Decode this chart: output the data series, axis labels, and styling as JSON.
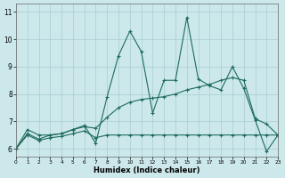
{
  "xlabel": "Humidex (Indice chaleur)",
  "bg_color": "#cce8ea",
  "grid_color": "#a8ced2",
  "line_color": "#1e6b5e",
  "xlim": [
    0,
    23
  ],
  "ylim": [
    5.7,
    11.3
  ],
  "xtick_vals": [
    0,
    1,
    2,
    3,
    4,
    5,
    6,
    7,
    8,
    9,
    10,
    11,
    12,
    13,
    14,
    15,
    16,
    17,
    18,
    19,
    20,
    21,
    22,
    23
  ],
  "ytick_vals": [
    6,
    7,
    8,
    9,
    10,
    11
  ],
  "line1_x": [
    0,
    1,
    2,
    3,
    4,
    5,
    6,
    7,
    8,
    9,
    10,
    11,
    12,
    13,
    14,
    15,
    16,
    17,
    18,
    19,
    20,
    21,
    22,
    23
  ],
  "line1_y": [
    6.0,
    6.7,
    6.5,
    6.5,
    6.55,
    6.7,
    6.85,
    6.2,
    7.9,
    9.4,
    10.3,
    9.55,
    7.3,
    8.5,
    8.5,
    10.8,
    8.55,
    8.3,
    8.15,
    9.0,
    8.2,
    7.05,
    5.9,
    6.5
  ],
  "line2_x": [
    0,
    1,
    2,
    3,
    4,
    5,
    6,
    7,
    8,
    9,
    10,
    11,
    12,
    13,
    14,
    15,
    16,
    17,
    18,
    19,
    20,
    21,
    22,
    23
  ],
  "line2_y": [
    6.0,
    6.55,
    6.35,
    6.5,
    6.55,
    6.7,
    6.8,
    6.75,
    7.15,
    7.5,
    7.7,
    7.8,
    7.85,
    7.9,
    8.0,
    8.15,
    8.25,
    8.35,
    8.5,
    8.6,
    8.5,
    7.1,
    6.9,
    6.5
  ],
  "line3_x": [
    0,
    1,
    2,
    3,
    4,
    5,
    6,
    7,
    8,
    9,
    10,
    11,
    12,
    13,
    14,
    15,
    16,
    17,
    18,
    19,
    20,
    21,
    22,
    23
  ],
  "line3_y": [
    6.0,
    6.5,
    6.3,
    6.4,
    6.45,
    6.55,
    6.65,
    6.4,
    6.5,
    6.5,
    6.5,
    6.5,
    6.5,
    6.5,
    6.5,
    6.5,
    6.5,
    6.5,
    6.5,
    6.5,
    6.5,
    6.5,
    6.5,
    6.5
  ]
}
